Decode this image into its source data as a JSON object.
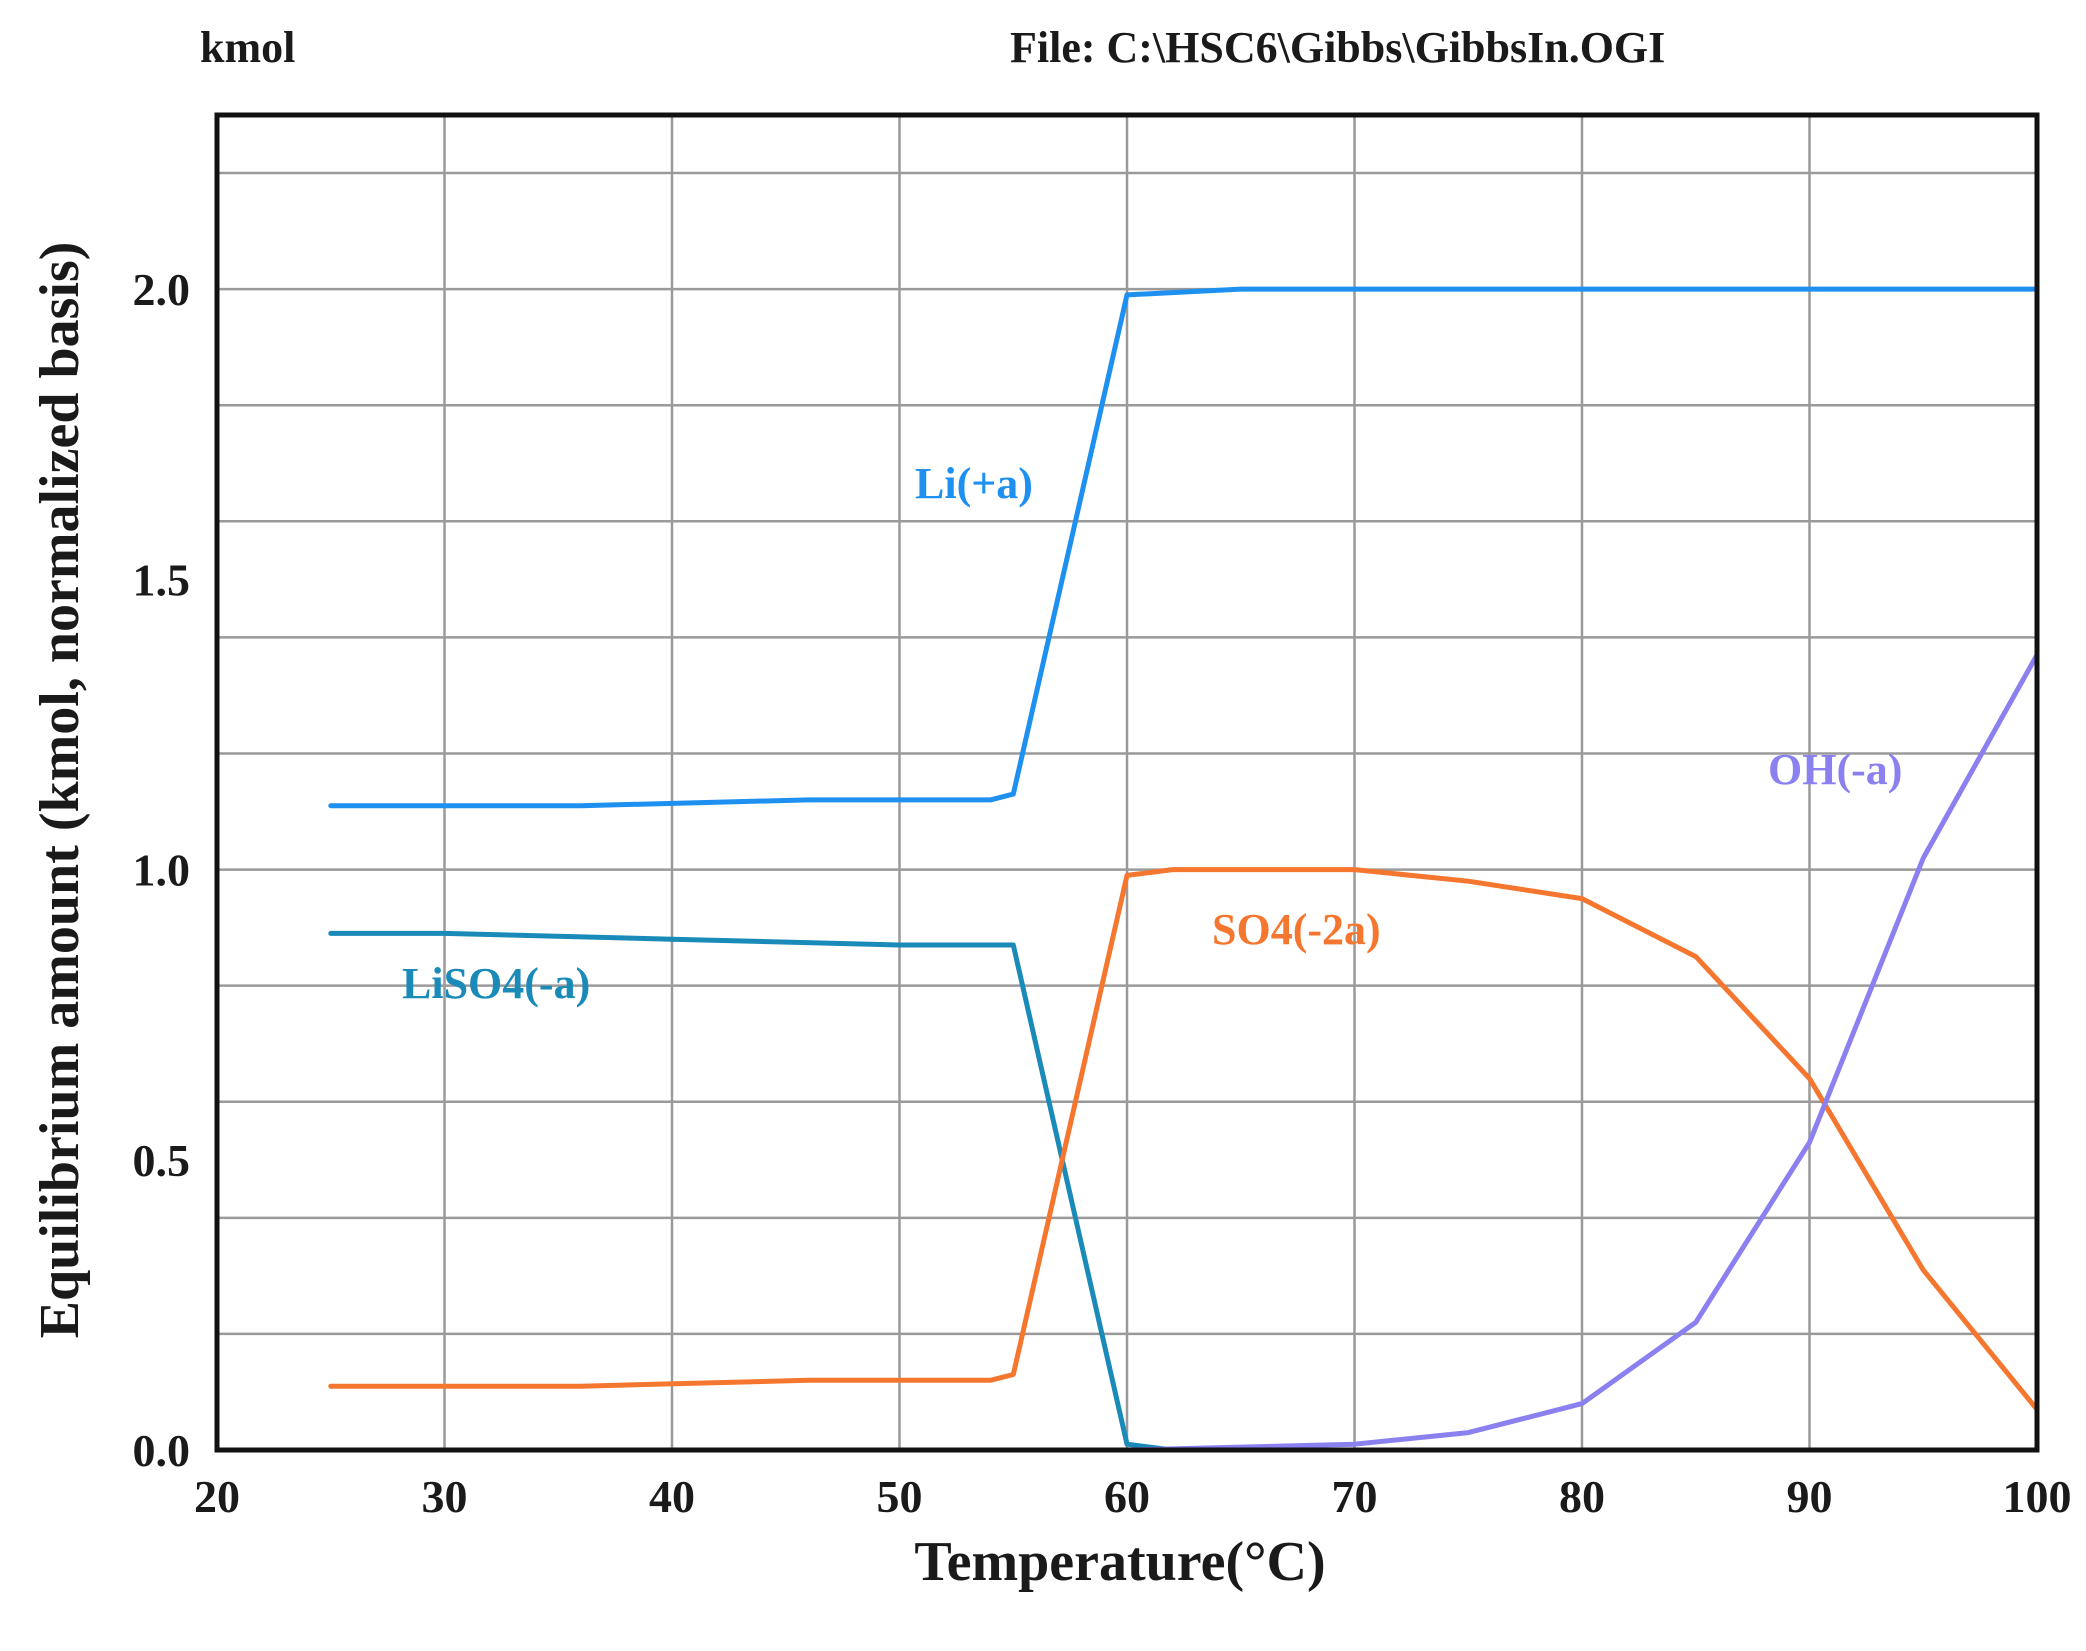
{
  "chart_data": {
    "type": "line",
    "unit_label": "kmol",
    "file_label": "File: C:\\HSC6\\Gibbs\\GibbsIn.OGI",
    "xlabel": "Temperature(°C)",
    "ylabel": "Equilibrium  amount  (kmol,  normalized  basis)",
    "xlim": [
      20,
      100
    ],
    "ylim": [
      0,
      2.3
    ],
    "x_ticks": [
      "20",
      "30",
      "40",
      "50",
      "60",
      "70",
      "80",
      "90",
      "100"
    ],
    "y_ticks": [
      "0.0",
      "0.5",
      "1.0",
      "1.5",
      "2.0"
    ],
    "grid": true,
    "series": [
      {
        "name": "Li(+a)",
        "color": "#1e90f0",
        "x": [
          25,
          36,
          46,
          54,
          55,
          60,
          65,
          75,
          90,
          100
        ],
        "y": [
          1.11,
          1.11,
          1.12,
          1.12,
          1.13,
          1.99,
          2.0,
          2.0,
          2.0,
          2.0
        ]
      },
      {
        "name": "LiSO4(-a)",
        "color": "#1a8ab8",
        "x": [
          25,
          30,
          40,
          50,
          55,
          60,
          62,
          70,
          80,
          90,
          100
        ],
        "y": [
          0.89,
          0.89,
          0.88,
          0.87,
          0.87,
          0.01,
          0.0,
          0.0,
          0.0,
          0.0,
          0.0
        ]
      },
      {
        "name": "SO4(-2a)",
        "color": "#f5762f",
        "x": [
          25,
          36,
          46,
          54,
          55,
          60,
          62,
          70,
          75,
          80,
          85,
          90,
          95,
          100
        ],
        "y": [
          0.11,
          0.11,
          0.12,
          0.12,
          0.13,
          0.99,
          1.0,
          1.0,
          0.98,
          0.95,
          0.85,
          0.64,
          0.31,
          0.07
        ]
      },
      {
        "name": "OH(-a)",
        "color": "#8a80f0",
        "x": [
          25,
          60,
          65,
          70,
          75,
          80,
          85,
          90,
          95,
          100
        ],
        "y": [
          0.0,
          0.0,
          0.005,
          0.01,
          0.03,
          0.08,
          0.22,
          0.53,
          1.02,
          1.37
        ]
      }
    ]
  }
}
